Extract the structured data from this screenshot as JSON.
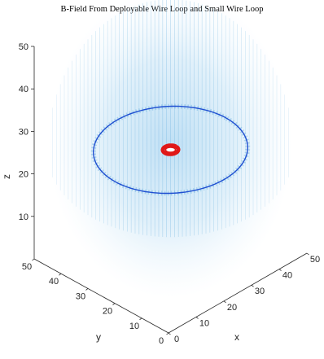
{
  "chart_data": {
    "type": "3d-vector-field",
    "title": "B-Field From Deployable Wire Loop and Small Wire Loop",
    "xlabel": "x",
    "ylabel": "y",
    "zlabel": "z",
    "xlim": [
      0,
      50
    ],
    "ylim": [
      0,
      50
    ],
    "zlim": [
      0,
      50
    ],
    "x_ticks": [
      "0",
      "10",
      "20",
      "30",
      "40",
      "50"
    ],
    "y_ticks": [
      "0",
      "10",
      "20",
      "30",
      "40",
      "50"
    ],
    "z_ticks": [
      "10",
      "20",
      "30",
      "40",
      "50"
    ],
    "grid": false,
    "series": [
      {
        "kind": "quiver",
        "color": "#4fa3d9"
      },
      {
        "kind": "loop",
        "center": [
          25,
          25,
          25
        ],
        "radius": 20,
        "color": "#1f4fd1"
      },
      {
        "kind": "loop",
        "center": [
          25,
          25,
          25
        ],
        "radius": 2,
        "color": "#e01818"
      }
    ]
  }
}
